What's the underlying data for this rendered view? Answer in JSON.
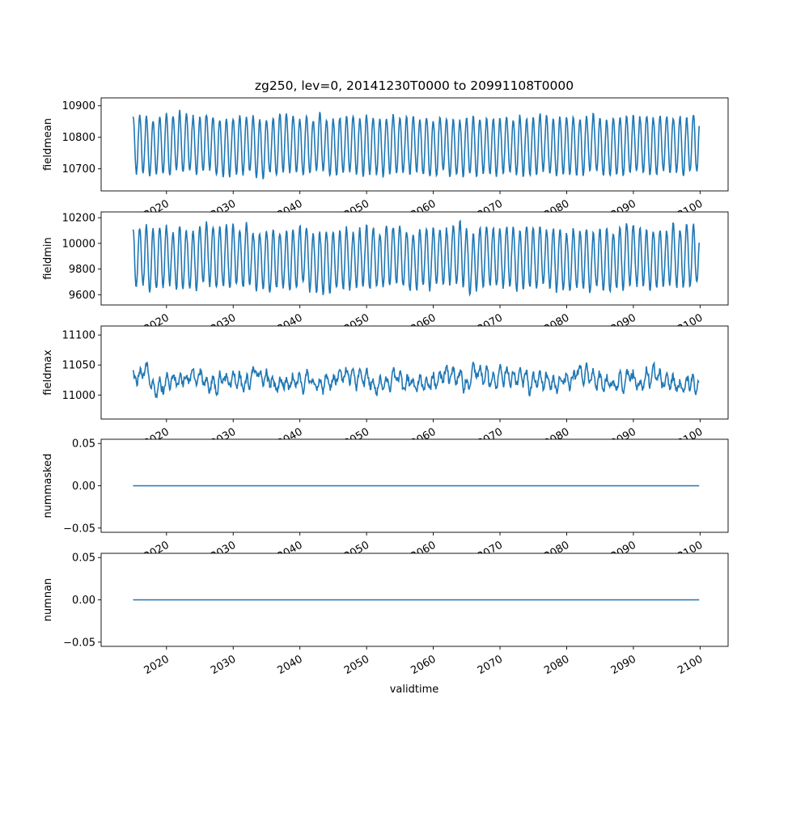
{
  "figure": {
    "title": "zg250, lev=0, 20141230T0000 to 20991108T0000",
    "xlabel": "validtime",
    "line_color": "#1f77b4"
  },
  "chart_data": [
    {
      "type": "line",
      "ylabel": "fieldmean",
      "x_ticks": [
        "2020",
        "2030",
        "2040",
        "2050",
        "2060",
        "2070",
        "2080",
        "2090",
        "2100"
      ],
      "y_ticks": [
        "10700",
        "10800",
        "10900"
      ],
      "xlim": [
        2010.2,
        2104.2
      ],
      "ylim": [
        10630,
        10925
      ],
      "series": [
        {
          "x_start": 2014.99,
          "x_end": 2099.86,
          "mean": 10775,
          "amplitude": 90,
          "trend": 0,
          "noise": 12,
          "period": 1.0
        }
      ]
    },
    {
      "type": "line",
      "ylabel": "fieldmin",
      "x_ticks": [
        "2020",
        "2030",
        "2040",
        "2050",
        "2060",
        "2070",
        "2080",
        "2090",
        "2100"
      ],
      "y_ticks": [
        "9600",
        "9800",
        "10000",
        "10200"
      ],
      "xlim": [
        2010.2,
        2104.2
      ],
      "ylim": [
        9520,
        10245
      ],
      "series": [
        {
          "x_start": 2014.99,
          "x_end": 2099.86,
          "mean": 9880,
          "amplitude": 230,
          "trend": 0,
          "noise": 45,
          "period": 1.0
        }
      ]
    },
    {
      "type": "line",
      "ylabel": "fieldmax",
      "x_ticks": [
        "2020",
        "2030",
        "2040",
        "2050",
        "2060",
        "2070",
        "2080",
        "2090",
        "2100"
      ],
      "y_ticks": [
        "11000",
        "11050",
        "11100"
      ],
      "xlim": [
        2010.2,
        2104.2
      ],
      "ylim": [
        10960,
        11115
      ],
      "series": [
        {
          "x_start": 2014.99,
          "x_end": 2099.86,
          "mean": 11025,
          "amplitude": 10,
          "trend": 0,
          "noise": 14,
          "period": 1.0
        }
      ]
    },
    {
      "type": "line",
      "ylabel": "nummasked",
      "x_ticks": [
        "2020",
        "2030",
        "2040",
        "2050",
        "2060",
        "2070",
        "2080",
        "2090",
        "2100"
      ],
      "y_ticks": [
        "−0.05",
        "0.00",
        "0.05"
      ],
      "y_tick_values": [
        -0.05,
        0.0,
        0.05
      ],
      "xlim": [
        2010.2,
        2104.2
      ],
      "ylim": [
        -0.055,
        0.055
      ],
      "series": [
        {
          "x": [
            2014.99,
            2099.86
          ],
          "y": [
            0,
            0
          ]
        }
      ]
    },
    {
      "type": "line",
      "ylabel": "numnan",
      "x_ticks": [
        "2020",
        "2030",
        "2040",
        "2050",
        "2060",
        "2070",
        "2080",
        "2090",
        "2100"
      ],
      "y_ticks": [
        "−0.05",
        "0.00",
        "0.05"
      ],
      "y_tick_values": [
        -0.05,
        0.0,
        0.05
      ],
      "xlim": [
        2010.2,
        2104.2
      ],
      "ylim": [
        -0.055,
        0.055
      ],
      "series": [
        {
          "x": [
            2014.99,
            2099.86
          ],
          "y": [
            0,
            0
          ]
        }
      ]
    }
  ]
}
